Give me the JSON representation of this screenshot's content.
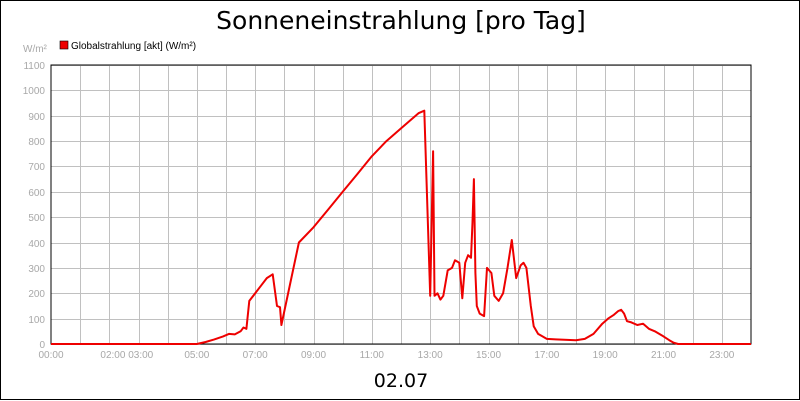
{
  "chart_data": {
    "type": "line",
    "title": "Sonneneinstrahlung [pro Tag]",
    "ylabel": "W/m²",
    "xlabel": "02.07",
    "ylim": [
      0,
      1100
    ],
    "xlim": [
      0,
      24
    ],
    "y_ticks": [
      "0",
      "100",
      "200",
      "300",
      "400",
      "500",
      "600",
      "700",
      "800",
      "900",
      "1000",
      "1100"
    ],
    "x_ticks": [
      {
        "h": 0,
        "label": "00:00"
      },
      {
        "h": 2.6,
        "label": "02:00 03:00"
      },
      {
        "h": 5,
        "label": "05:00"
      },
      {
        "h": 7,
        "label": "07:00"
      },
      {
        "h": 9,
        "label": "09:00"
      },
      {
        "h": 11,
        "label": "11:00"
      },
      {
        "h": 13,
        "label": "13:00"
      },
      {
        "h": 15,
        "label": "15:00"
      },
      {
        "h": 17,
        "label": "17:00"
      },
      {
        "h": 19,
        "label": "19:00"
      },
      {
        "h": 21,
        "label": "21:00"
      },
      {
        "h": 23,
        "label": "23:00"
      }
    ],
    "grid": true,
    "legend_position": "top-left",
    "series": [
      {
        "name": "Globalstrahlung [akt] (W/m²)",
        "color": "#ee0000",
        "x": [
          0,
          5.0,
          5.3,
          5.6,
          5.9,
          6.1,
          6.3,
          6.5,
          6.6,
          6.7,
          6.8,
          7.0,
          7.2,
          7.4,
          7.6,
          7.75,
          7.85,
          7.9,
          8.5,
          9.0,
          9.5,
          10.0,
          10.5,
          11.0,
          11.5,
          12.0,
          12.3,
          12.6,
          12.8,
          13.0,
          13.1,
          13.15,
          13.25,
          13.35,
          13.45,
          13.6,
          13.75,
          13.85,
          14.0,
          14.1,
          14.2,
          14.3,
          14.4,
          14.45,
          14.5,
          14.55,
          14.6,
          14.7,
          14.85,
          14.95,
          15.1,
          15.2,
          15.35,
          15.5,
          15.65,
          15.8,
          15.95,
          16.1,
          16.2,
          16.3,
          16.45,
          16.55,
          16.7,
          16.85,
          17.0,
          17.3,
          18.0,
          18.3,
          18.6,
          18.9,
          19.1,
          19.3,
          19.45,
          19.55,
          19.65,
          19.75,
          19.9,
          20.1,
          20.3,
          20.5,
          20.7,
          21.0,
          21.2,
          21.35,
          21.5,
          22.0,
          24.0
        ],
        "values": [
          0,
          0,
          8,
          18,
          30,
          40,
          38,
          50,
          65,
          60,
          170,
          200,
          230,
          260,
          275,
          150,
          145,
          75,
          400,
          460,
          530,
          600,
          670,
          740,
          800,
          850,
          880,
          910,
          920,
          190,
          760,
          190,
          200,
          175,
          190,
          290,
          300,
          330,
          320,
          180,
          320,
          350,
          340,
          480,
          650,
          280,
          150,
          120,
          110,
          300,
          280,
          190,
          170,
          200,
          300,
          410,
          260,
          310,
          320,
          300,
          150,
          70,
          40,
          30,
          20,
          18,
          15,
          20,
          40,
          80,
          100,
          115,
          130,
          135,
          120,
          90,
          85,
          75,
          80,
          60,
          50,
          30,
          15,
          5,
          0,
          0,
          0
        ]
      }
    ]
  }
}
